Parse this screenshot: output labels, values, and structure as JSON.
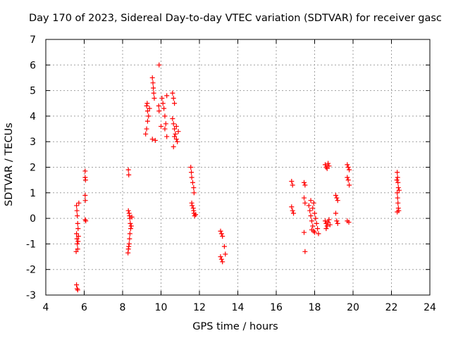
{
  "chart_data": {
    "type": "scatter",
    "title": "Day 170 of 2023, Sidereal Day-to-day VTEC variation (SDTVAR) for receiver gasc",
    "xlabel": "GPS time / hours",
    "ylabel": "SDTVAR / TECUs",
    "xlim": [
      4,
      24
    ],
    "ylim": [
      -3,
      7
    ],
    "xticks": [
      "4",
      "6",
      "8",
      "10",
      "12",
      "14",
      "16",
      "18",
      "20",
      "22",
      "24"
    ],
    "yticks": [
      "-3",
      "-2",
      "-1",
      "0",
      "1",
      "2",
      "3",
      "4",
      "5",
      "6",
      "7"
    ],
    "grid": true,
    "marker": "+",
    "color": "#ff0000",
    "series": [
      {
        "name": "SDTVAR",
        "points": [
          [
            5.6,
            0.5
          ],
          [
            5.62,
            0.3
          ],
          [
            5.64,
            0.1
          ],
          [
            5.66,
            -0.2
          ],
          [
            5.68,
            -0.4
          ],
          [
            5.6,
            -0.6
          ],
          [
            5.62,
            -0.8
          ],
          [
            5.64,
            -1.0
          ],
          [
            5.66,
            -1.2
          ],
          [
            5.68,
            -0.9
          ],
          [
            5.7,
            -0.7
          ],
          [
            5.72,
            0.6
          ],
          [
            5.58,
            -1.3
          ],
          [
            5.6,
            -2.6
          ],
          [
            5.63,
            -2.75
          ],
          [
            5.66,
            -2.8
          ],
          [
            6.05,
            1.85
          ],
          [
            6.05,
            1.6
          ],
          [
            6.07,
            1.5
          ],
          [
            6.05,
            0.9
          ],
          [
            6.06,
            0.7
          ],
          [
            6.05,
            -0.05
          ],
          [
            6.08,
            -0.1
          ],
          [
            8.3,
            1.9
          ],
          [
            8.32,
            1.7
          ],
          [
            8.3,
            0.3
          ],
          [
            8.34,
            0.2
          ],
          [
            8.36,
            0.1
          ],
          [
            8.38,
            0.0
          ],
          [
            8.4,
            -0.2
          ],
          [
            8.42,
            -0.4
          ],
          [
            8.38,
            -0.6
          ],
          [
            8.36,
            -0.8
          ],
          [
            8.34,
            -1.0
          ],
          [
            8.32,
            -1.1
          ],
          [
            8.3,
            -1.2
          ],
          [
            8.28,
            -1.35
          ],
          [
            8.45,
            -0.3
          ],
          [
            8.48,
            0.05
          ],
          [
            9.2,
            3.3
          ],
          [
            9.25,
            3.5
          ],
          [
            9.3,
            3.8
          ],
          [
            9.35,
            4.0
          ],
          [
            9.3,
            4.2
          ],
          [
            9.25,
            4.4
          ],
          [
            9.28,
            4.5
          ],
          [
            9.4,
            4.3
          ],
          [
            9.55,
            5.5
          ],
          [
            9.58,
            5.3
          ],
          [
            9.6,
            5.1
          ],
          [
            9.62,
            4.9
          ],
          [
            9.65,
            4.7
          ],
          [
            9.55,
            3.1
          ],
          [
            9.7,
            3.05
          ],
          [
            9.9,
            6.0
          ],
          [
            9.88,
            4.4
          ],
          [
            9.9,
            4.2
          ],
          [
            10.0,
            3.6
          ],
          [
            10.05,
            4.7
          ],
          [
            10.1,
            4.5
          ],
          [
            10.15,
            4.3
          ],
          [
            10.2,
            4.0
          ],
          [
            10.25,
            3.7
          ],
          [
            10.2,
            3.5
          ],
          [
            10.3,
            3.2
          ],
          [
            10.3,
            4.8
          ],
          [
            10.6,
            4.9
          ],
          [
            10.65,
            4.7
          ],
          [
            10.7,
            4.5
          ],
          [
            10.6,
            3.9
          ],
          [
            10.65,
            3.7
          ],
          [
            10.7,
            3.5
          ],
          [
            10.75,
            3.3
          ],
          [
            10.8,
            3.1
          ],
          [
            10.85,
            3.0
          ],
          [
            10.65,
            2.8
          ],
          [
            10.8,
            3.6
          ],
          [
            10.9,
            3.4
          ],
          [
            10.7,
            3.2
          ],
          [
            11.55,
            2.0
          ],
          [
            11.58,
            1.8
          ],
          [
            11.6,
            1.6
          ],
          [
            11.65,
            1.4
          ],
          [
            11.7,
            1.2
          ],
          [
            11.72,
            1.0
          ],
          [
            11.6,
            0.6
          ],
          [
            11.62,
            0.5
          ],
          [
            11.68,
            0.4
          ],
          [
            11.7,
            0.3
          ],
          [
            11.72,
            0.2
          ],
          [
            11.75,
            0.1
          ],
          [
            11.8,
            0.15
          ],
          [
            13.1,
            -0.5
          ],
          [
            13.15,
            -0.6
          ],
          [
            13.2,
            -0.7
          ],
          [
            13.1,
            -1.5
          ],
          [
            13.15,
            -1.6
          ],
          [
            13.2,
            -1.7
          ],
          [
            13.3,
            -1.1
          ],
          [
            13.35,
            -1.4
          ],
          [
            16.8,
            1.45
          ],
          [
            16.85,
            1.3
          ],
          [
            16.8,
            0.45
          ],
          [
            16.85,
            0.3
          ],
          [
            16.9,
            0.2
          ],
          [
            17.45,
            1.4
          ],
          [
            17.5,
            1.3
          ],
          [
            17.45,
            0.8
          ],
          [
            17.5,
            0.6
          ],
          [
            17.45,
            -0.55
          ],
          [
            17.5,
            -1.3
          ],
          [
            17.7,
            0.5
          ],
          [
            17.75,
            0.3
          ],
          [
            17.8,
            0.1
          ],
          [
            17.85,
            -0.1
          ],
          [
            17.9,
            -0.3
          ],
          [
            17.95,
            -0.5
          ],
          [
            17.8,
            0.7
          ],
          [
            17.9,
            0.4
          ],
          [
            18.0,
            0.2
          ],
          [
            18.05,
            0.0
          ],
          [
            18.1,
            -0.2
          ],
          [
            18.15,
            -0.4
          ],
          [
            18.2,
            -0.6
          ],
          [
            17.85,
            -0.45
          ],
          [
            17.95,
            0.6
          ],
          [
            18.0,
            -0.55
          ],
          [
            18.55,
            2.1
          ],
          [
            18.6,
            2.0
          ],
          [
            18.65,
            1.95
          ],
          [
            18.7,
            2.15
          ],
          [
            18.75,
            2.05
          ],
          [
            18.55,
            -0.1
          ],
          [
            18.6,
            -0.2
          ],
          [
            18.65,
            -0.3
          ],
          [
            18.7,
            -0.15
          ],
          [
            18.75,
            -0.05
          ],
          [
            18.8,
            -0.25
          ],
          [
            18.6,
            -0.4
          ],
          [
            19.1,
            0.9
          ],
          [
            19.15,
            0.8
          ],
          [
            19.2,
            0.7
          ],
          [
            19.1,
            0.2
          ],
          [
            19.15,
            -0.1
          ],
          [
            19.2,
            -0.2
          ],
          [
            19.7,
            2.1
          ],
          [
            19.75,
            2.0
          ],
          [
            19.8,
            1.9
          ],
          [
            19.7,
            1.6
          ],
          [
            19.75,
            1.5
          ],
          [
            19.8,
            1.3
          ],
          [
            19.7,
            -0.1
          ],
          [
            19.78,
            -0.15
          ],
          [
            22.3,
            1.8
          ],
          [
            22.32,
            1.6
          ],
          [
            22.34,
            1.4
          ],
          [
            22.36,
            1.2
          ],
          [
            22.3,
            1.0
          ],
          [
            22.32,
            0.8
          ],
          [
            22.34,
            0.6
          ],
          [
            22.36,
            0.4
          ],
          [
            22.38,
            0.3
          ],
          [
            22.3,
            0.25
          ],
          [
            22.4,
            1.1
          ],
          [
            22.28,
            1.5
          ]
        ]
      }
    ]
  }
}
